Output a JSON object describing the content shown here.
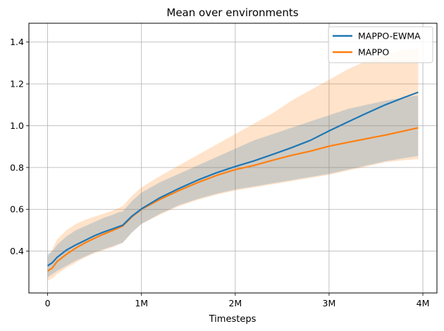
{
  "chart_data": {
    "type": "line",
    "title": "Mean over environments",
    "xlabel": "Timesteps",
    "ylabel": "",
    "xlim": [
      -200000,
      4150000
    ],
    "ylim": [
      0.2,
      1.49
    ],
    "xticks": [
      0,
      1000000,
      2000000,
      3000000,
      4000000
    ],
    "xtick_labels": [
      "0",
      "1M",
      "2M",
      "3M",
      "4M"
    ],
    "yticks": [
      0.4,
      0.6,
      0.8,
      1.0,
      1.2,
      1.4
    ],
    "ytick_labels": [
      "0.4",
      "0.6",
      "0.8",
      "1.0",
      "1.2",
      "1.4"
    ],
    "grid": true,
    "legend_position": "top-right",
    "series": [
      {
        "name": "MAPPO-EWMA",
        "color": "#1f77b4",
        "x": [
          0,
          50000,
          100000,
          200000,
          300000,
          400000,
          500000,
          600000,
          700000,
          750000,
          800000,
          900000,
          1000000,
          1200000,
          1400000,
          1600000,
          1800000,
          2000000,
          2200000,
          2400000,
          2600000,
          2800000,
          3000000,
          3200000,
          3400000,
          3600000,
          3800000,
          3950000
        ],
        "values": [
          0.33,
          0.345,
          0.37,
          0.405,
          0.43,
          0.452,
          0.474,
          0.492,
          0.508,
          0.516,
          0.524,
          0.568,
          0.602,
          0.656,
          0.7,
          0.74,
          0.775,
          0.805,
          0.832,
          0.863,
          0.895,
          0.93,
          0.975,
          1.018,
          1.06,
          1.1,
          1.135,
          1.16
        ],
        "band_lower": [
          0.275,
          0.29,
          0.305,
          0.33,
          0.355,
          0.375,
          0.395,
          0.41,
          0.425,
          0.433,
          0.44,
          0.49,
          0.53,
          0.58,
          0.62,
          0.65,
          0.675,
          0.695,
          0.71,
          0.725,
          0.74,
          0.755,
          0.77,
          0.79,
          0.81,
          0.83,
          0.845,
          0.855
        ],
        "band_upper": [
          0.385,
          0.4,
          0.43,
          0.47,
          0.5,
          0.52,
          0.54,
          0.56,
          0.575,
          0.585,
          0.59,
          0.64,
          0.68,
          0.73,
          0.77,
          0.81,
          0.85,
          0.89,
          0.93,
          0.96,
          0.99,
          1.02,
          1.05,
          1.08,
          1.1,
          1.12,
          1.135,
          1.145
        ],
        "band_color": "#1f77b4"
      },
      {
        "name": "MAPPO",
        "color": "#ff7f0e",
        "x": [
          0,
          50000,
          100000,
          200000,
          300000,
          400000,
          500000,
          600000,
          700000,
          750000,
          800000,
          900000,
          1000000,
          1200000,
          1400000,
          1600000,
          1800000,
          2000000,
          2200000,
          2400000,
          2600000,
          2800000,
          3000000,
          3200000,
          3400000,
          3600000,
          3800000,
          3950000
        ],
        "values": [
          0.305,
          0.32,
          0.35,
          0.385,
          0.415,
          0.44,
          0.462,
          0.482,
          0.5,
          0.51,
          0.52,
          0.565,
          0.6,
          0.648,
          0.69,
          0.728,
          0.762,
          0.79,
          0.81,
          0.835,
          0.858,
          0.878,
          0.902,
          0.92,
          0.938,
          0.955,
          0.975,
          0.99
        ],
        "band_lower": [
          0.26,
          0.27,
          0.29,
          0.32,
          0.345,
          0.37,
          0.39,
          0.405,
          0.42,
          0.43,
          0.44,
          0.49,
          0.53,
          0.575,
          0.615,
          0.645,
          0.67,
          0.69,
          0.705,
          0.72,
          0.735,
          0.75,
          0.765,
          0.785,
          0.805,
          0.825,
          0.835,
          0.84
        ],
        "band_upper": [
          0.37,
          0.41,
          0.455,
          0.5,
          0.53,
          0.55,
          0.565,
          0.58,
          0.595,
          0.605,
          0.615,
          0.665,
          0.705,
          0.76,
          0.81,
          0.86,
          0.91,
          0.96,
          1.01,
          1.06,
          1.12,
          1.17,
          1.22,
          1.27,
          1.31,
          1.34,
          1.365,
          1.37
        ],
        "band_color": "#ff7f0e"
      }
    ]
  }
}
